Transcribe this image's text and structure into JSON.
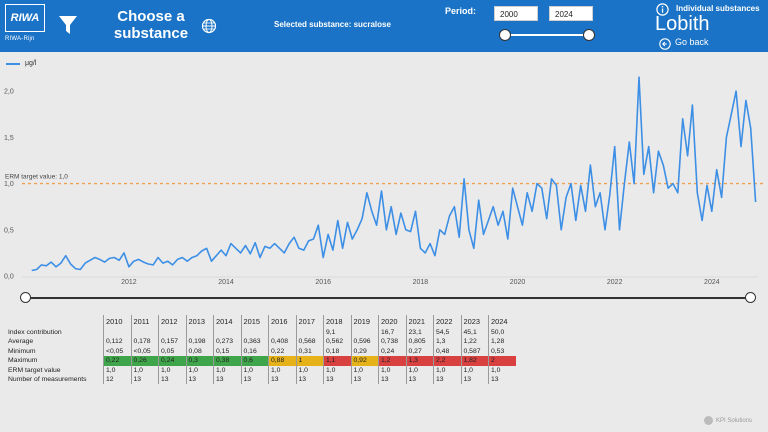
{
  "header": {
    "logo_text": "RIWA",
    "logo_subtext": "RIWA-Rijn",
    "choose_line1": "Choose a",
    "choose_line2": "substance",
    "selected_substance": "Selected substance: sucralose",
    "period_label": "Period:",
    "period_from": "2000",
    "period_to": "2024",
    "individual_substances": "Individual substances",
    "location": "Lobith",
    "go_back": "Go back",
    "header_color": "#1a73c6"
  },
  "chart_data": {
    "type": "line",
    "legend": "μg/l",
    "ylim": [
      0,
      2.25
    ],
    "yticks": [
      "0,0",
      "0,5",
      "1,0",
      "1,5",
      "2,0"
    ],
    "xticks": [
      "2012",
      "2014",
      "2016",
      "2018",
      "2020",
      "2022",
      "2024"
    ],
    "xlim": [
      2009.8,
      2024.95
    ],
    "reference_label": "ERM target value: 1,0",
    "reference_value": 1.0,
    "line_color": "#3d8fe6",
    "reference_color": "#f0a050",
    "x": [
      2010.0,
      2010.1,
      2010.2,
      2010.3,
      2010.4,
      2010.5,
      2010.6,
      2010.7,
      2010.8,
      2010.9,
      2011.0,
      2011.1,
      2011.2,
      2011.3,
      2011.4,
      2011.5,
      2011.6,
      2011.7,
      2011.8,
      2011.9,
      2012.0,
      2012.1,
      2012.2,
      2012.3,
      2012.4,
      2012.5,
      2012.6,
      2012.7,
      2012.8,
      2012.9,
      2013.0,
      2013.1,
      2013.2,
      2013.3,
      2013.4,
      2013.5,
      2013.6,
      2013.7,
      2013.8,
      2013.9,
      2014.0,
      2014.1,
      2014.2,
      2014.3,
      2014.4,
      2014.5,
      2014.6,
      2014.7,
      2014.8,
      2014.9,
      2015.0,
      2015.1,
      2015.2,
      2015.3,
      2015.4,
      2015.5,
      2015.6,
      2015.7,
      2015.8,
      2015.9,
      2016.0,
      2016.1,
      2016.2,
      2016.3,
      2016.4,
      2016.5,
      2016.6,
      2016.7,
      2016.8,
      2016.9,
      2017.0,
      2017.1,
      2017.2,
      2017.3,
      2017.4,
      2017.5,
      2017.6,
      2017.7,
      2017.8,
      2017.9,
      2018.0,
      2018.1,
      2018.2,
      2018.3,
      2018.4,
      2018.5,
      2018.6,
      2018.7,
      2018.8,
      2018.9,
      2019.0,
      2019.1,
      2019.2,
      2019.3,
      2019.4,
      2019.5,
      2019.6,
      2019.7,
      2019.8,
      2019.9,
      2020.0,
      2020.1,
      2020.2,
      2020.3,
      2020.4,
      2020.5,
      2020.6,
      2020.7,
      2020.8,
      2020.9,
      2021.0,
      2021.1,
      2021.2,
      2021.3,
      2021.4,
      2021.5,
      2021.6,
      2021.7,
      2021.8,
      2021.9,
      2022.0,
      2022.1,
      2022.2,
      2022.3,
      2022.4,
      2022.5,
      2022.6,
      2022.7,
      2022.8,
      2022.9,
      2023.0,
      2023.1,
      2023.2,
      2023.3,
      2023.4,
      2023.5,
      2023.6,
      2023.7,
      2023.8,
      2023.9,
      2024.0,
      2024.1,
      2024.2,
      2024.3,
      2024.4,
      2024.5,
      2024.6,
      2024.7,
      2024.8,
      2024.9
    ],
    "values": [
      0.06,
      0.07,
      0.12,
      0.11,
      0.15,
      0.1,
      0.14,
      0.22,
      0.13,
      0.08,
      0.07,
      0.14,
      0.17,
      0.2,
      0.18,
      0.15,
      0.19,
      0.2,
      0.17,
      0.25,
      0.1,
      0.16,
      0.18,
      0.15,
      0.13,
      0.12,
      0.2,
      0.14,
      0.16,
      0.12,
      0.18,
      0.2,
      0.16,
      0.2,
      0.22,
      0.27,
      0.3,
      0.16,
      0.22,
      0.28,
      0.22,
      0.35,
      0.3,
      0.25,
      0.33,
      0.24,
      0.36,
      0.2,
      0.32,
      0.3,
      0.35,
      0.3,
      0.25,
      0.35,
      0.42,
      0.3,
      0.28,
      0.38,
      0.4,
      0.55,
      0.2,
      0.45,
      0.28,
      0.6,
      0.3,
      0.58,
      0.4,
      0.5,
      0.62,
      0.9,
      0.7,
      0.55,
      0.92,
      0.5,
      0.75,
      0.45,
      0.68,
      0.5,
      0.48,
      0.7,
      0.3,
      0.25,
      0.35,
      0.22,
      0.5,
      0.45,
      0.65,
      0.75,
      0.42,
      1.05,
      0.5,
      0.3,
      0.82,
      0.45,
      0.6,
      0.75,
      0.55,
      0.7,
      0.4,
      0.95,
      0.75,
      0.55,
      0.9,
      0.7,
      1.0,
      0.95,
      0.62,
      1.05,
      0.98,
      0.5,
      0.85,
      1.0,
      0.6,
      0.98,
      0.7,
      1.2,
      0.75,
      0.9,
      0.5,
      0.88,
      1.4,
      0.5,
      1.0,
      1.45,
      1.0,
      2.15,
      1.1,
      1.4,
      0.9,
      1.35,
      1.2,
      0.95,
      1.0,
      0.9,
      1.7,
      1.3,
      1.85,
      0.9,
      0.6,
      0.98,
      0.7,
      1.15,
      0.85,
      1.5,
      1.75,
      2.0,
      1.4,
      1.9,
      1.6,
      0.8
    ]
  },
  "table": {
    "years": [
      "2010",
      "2011",
      "2012",
      "2013",
      "2014",
      "2015",
      "2016",
      "2017",
      "2018",
      "2019",
      "2020",
      "2021",
      "2022",
      "2023",
      "2024"
    ],
    "rows": [
      {
        "label": "Index contribution",
        "cells": [
          "",
          "",
          "",
          "",
          "",
          "",
          "",
          "",
          "9,1",
          "",
          "16,7",
          "23,1",
          "54,5",
          "45,1",
          "50,0"
        ],
        "colors": []
      },
      {
        "label": "Average",
        "cells": [
          "0,112",
          "0,178",
          "0,157",
          "0,198",
          "0,273",
          "0,363",
          "0,408",
          "0,568",
          "0,562",
          "0,596",
          "0,738",
          "0,805",
          "1,3",
          "1,22",
          "1,28"
        ],
        "colors": []
      },
      {
        "label": "Minimum",
        "cells": [
          "<0,05",
          "<0,05",
          "0,05",
          "0,08",
          "0,15",
          "0,16",
          "0,22",
          "0,31",
          "0,18",
          "0,29",
          "0,24",
          "0,27",
          "0,48",
          "0,587",
          "0,53"
        ],
        "colors": []
      },
      {
        "label": "Maximum",
        "cells": [
          "0,22",
          "0,26",
          "0,24",
          "0,3",
          "0,38",
          "0,6",
          "0,88",
          "1",
          "1,1",
          "0,92",
          "1,2",
          "1,3",
          "2,2",
          "1,82",
          "2"
        ],
        "colors": [
          "#3fa54a",
          "#3fa54a",
          "#3fa54a",
          "#3fa54a",
          "#3fa54a",
          "#3fa54a",
          "#e6b21a",
          "#e6b21a",
          "#d94040",
          "#e6b21a",
          "#d94040",
          "#d94040",
          "#d94040",
          "#d94040",
          "#d94040"
        ]
      },
      {
        "label": "ERM target value",
        "cells": [
          "1,0",
          "1,0",
          "1,0",
          "1,0",
          "1,0",
          "1,0",
          "1,0",
          "1,0",
          "1,0",
          "1,0",
          "1,0",
          "1,0",
          "1,0",
          "1,0",
          "1,0"
        ],
        "colors": []
      },
      {
        "label": "Number of measurements",
        "cells": [
          "12",
          "13",
          "13",
          "13",
          "13",
          "13",
          "13",
          "13",
          "13",
          "13",
          "13",
          "13",
          "13",
          "13",
          "13"
        ],
        "colors": []
      }
    ]
  },
  "footer": {
    "brand": "KPI Solutions"
  }
}
